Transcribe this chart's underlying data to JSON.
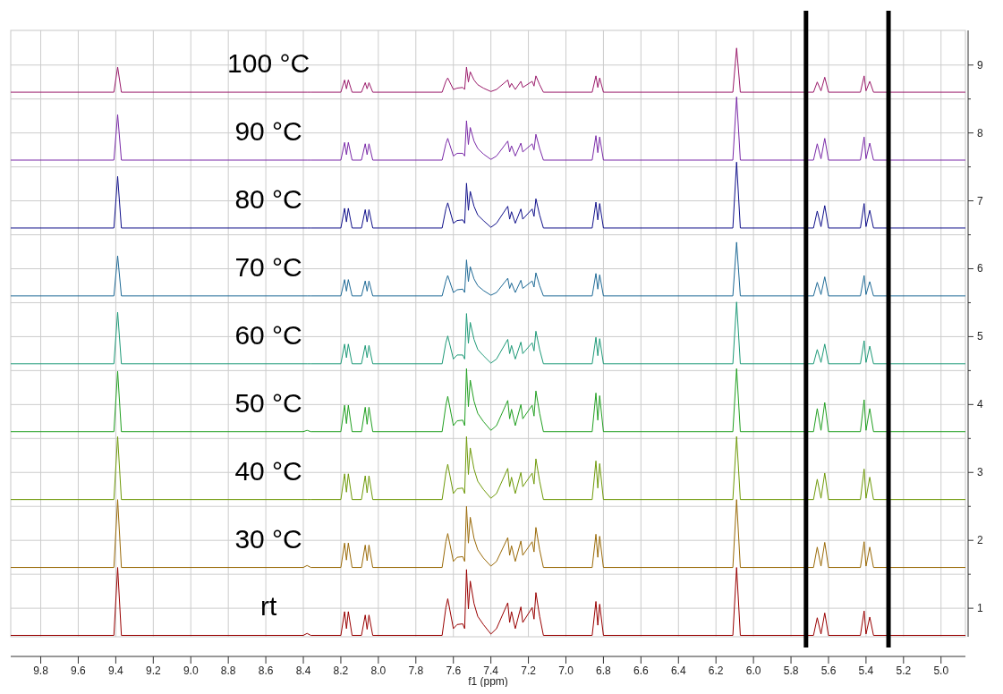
{
  "chart_data": {
    "type": "line",
    "xlabel": "f1 (ppm)",
    "xlim": [
      9.96,
      4.87
    ],
    "ylim": [
      0.58,
      9.51
    ],
    "xticks": [
      9.8,
      9.6,
      9.4,
      9.2,
      {
        "value": 9.0,
        "label": "9.0"
      },
      8.8,
      8.6,
      8.4,
      8.2,
      {
        "value": 8.0,
        "label": "8.0"
      },
      7.8,
      7.6,
      7.4,
      7.2,
      {
        "value": 7.0,
        "label": "7.0"
      },
      6.8,
      6.6,
      6.4,
      6.2,
      {
        "value": 6.0,
        "label": "6.0"
      },
      5.8,
      5.6,
      5.4,
      5.2,
      {
        "value": 5.0,
        "label": "5.0"
      }
    ],
    "yticks": [
      1,
      {
        "value": 1.5,
        "label": null
      },
      2,
      {
        "value": 2.5,
        "label": null
      },
      3,
      {
        "value": 3.5,
        "label": null
      },
      4,
      {
        "value": 4.5,
        "label": null
      },
      5,
      {
        "value": 5.5,
        "label": null
      },
      6,
      {
        "value": 6.5,
        "label": null
      },
      7,
      {
        "value": 7.5,
        "label": null
      },
      8,
      {
        "value": 8.5,
        "label": null
      },
      9
    ],
    "grid": true,
    "ref_lines": [
      {
        "axis": "x",
        "value": 5.72,
        "color": "#000000"
      },
      {
        "axis": "x",
        "value": 5.28,
        "color": "#000000"
      }
    ],
    "x": [
      9.96,
      9.41,
      9.39,
      9.37,
      8.4,
      8.38,
      8.36,
      8.2,
      8.18,
      8.17,
      8.16,
      8.14,
      8.09,
      8.07,
      8.06,
      8.05,
      8.03,
      7.66,
      7.64,
      7.63,
      7.6,
      7.58,
      7.55,
      7.54,
      7.53,
      7.52,
      7.51,
      7.49,
      7.47,
      7.44,
      7.4,
      7.37,
      7.31,
      7.3,
      7.29,
      7.27,
      7.24,
      7.23,
      7.18,
      7.17,
      7.16,
      7.14,
      7.12,
      6.86,
      6.84,
      6.83,
      6.82,
      6.8,
      6.11,
      6.09,
      6.07,
      5.68,
      5.66,
      5.64,
      5.62,
      5.6,
      5.43,
      5.41,
      5.4,
      5.38,
      5.36,
      4.87
    ],
    "series": [
      {
        "name": "rt",
        "color": "#990000",
        "values": [
          0.6,
          0.6,
          1.6,
          0.6,
          0.6,
          0.63,
          0.6,
          0.6,
          0.95,
          0.7,
          0.95,
          0.6,
          0.6,
          0.9,
          0.69,
          0.9,
          0.6,
          0.6,
          1.01,
          1.14,
          0.7,
          0.76,
          0.77,
          0.7,
          1.57,
          0.99,
          1.4,
          1.07,
          0.88,
          0.76,
          0.62,
          0.7,
          1.08,
          0.79,
          0.95,
          0.7,
          1.02,
          0.79,
          1.01,
          0.84,
          1.23,
          0.88,
          0.6,
          0.6,
          1.1,
          0.75,
          1.06,
          0.6,
          0.6,
          1.6,
          0.6,
          0.6,
          0.86,
          0.62,
          0.93,
          0.6,
          0.6,
          0.96,
          0.62,
          0.87,
          0.6,
          0.6
        ]
      },
      {
        "name": "30 °C",
        "color": "#9a6a08",
        "values": [
          1.6,
          1.6,
          2.6,
          1.6,
          1.6,
          1.63,
          1.6,
          1.6,
          1.96,
          1.71,
          1.96,
          1.6,
          1.6,
          1.93,
          1.7,
          1.93,
          1.6,
          1.6,
          1.98,
          2.1,
          1.69,
          1.75,
          1.76,
          1.69,
          2.5,
          1.96,
          2.34,
          2.03,
          1.86,
          1.74,
          1.62,
          1.69,
          2.04,
          1.78,
          1.92,
          1.69,
          1.99,
          1.78,
          1.98,
          1.83,
          2.19,
          1.86,
          1.6,
          1.6,
          2.09,
          1.75,
          2.06,
          1.6,
          1.6,
          2.6,
          1.6,
          1.6,
          1.9,
          1.62,
          1.97,
          1.6,
          1.6,
          1.98,
          1.62,
          1.9,
          1.6,
          1.6
        ]
      },
      {
        "name": "40 °C",
        "color": "#6f9a0a",
        "values": [
          2.6,
          2.6,
          3.53,
          2.6,
          2.6,
          2.6,
          2.6,
          2.6,
          2.98,
          2.71,
          2.98,
          2.6,
          2.6,
          2.95,
          2.7,
          2.95,
          2.6,
          2.6,
          2.99,
          3.12,
          2.69,
          2.76,
          2.77,
          2.69,
          3.53,
          2.97,
          3.36,
          3.05,
          2.87,
          2.75,
          2.62,
          2.69,
          3.06,
          2.79,
          2.93,
          2.69,
          3.0,
          2.79,
          2.99,
          2.83,
          3.2,
          2.87,
          2.6,
          2.6,
          3.17,
          2.77,
          3.13,
          2.6,
          2.6,
          3.53,
          2.6,
          2.6,
          2.9,
          2.62,
          2.99,
          2.6,
          2.6,
          3.05,
          2.62,
          2.93,
          2.6,
          2.6
        ]
      },
      {
        "name": "50 °C",
        "color": "#22a022",
        "values": [
          3.6,
          3.6,
          4.49,
          3.6,
          3.6,
          3.62,
          3.6,
          3.6,
          3.99,
          3.72,
          3.99,
          3.6,
          3.6,
          3.96,
          3.71,
          3.96,
          3.6,
          3.6,
          3.99,
          4.12,
          3.69,
          3.76,
          3.77,
          3.69,
          4.53,
          3.97,
          4.36,
          4.05,
          3.87,
          3.75,
          3.62,
          3.69,
          4.06,
          3.79,
          3.93,
          3.69,
          4.0,
          3.79,
          3.99,
          3.83,
          4.2,
          3.87,
          3.6,
          3.6,
          4.17,
          3.77,
          4.13,
          3.6,
          3.6,
          4.53,
          3.6,
          3.6,
          3.94,
          3.62,
          4.03,
          3.6,
          3.6,
          4.07,
          3.62,
          3.94,
          3.6,
          3.6
        ]
      },
      {
        "name": "60 °C",
        "color": "#1e9a78",
        "values": [
          4.6,
          4.6,
          5.36,
          4.6,
          4.6,
          4.6,
          4.6,
          4.6,
          4.89,
          4.69,
          4.89,
          4.6,
          4.6,
          4.87,
          4.69,
          4.87,
          4.6,
          4.6,
          4.91,
          5.01,
          4.67,
          4.73,
          4.73,
          4.67,
          5.34,
          4.9,
          5.21,
          4.96,
          4.81,
          4.72,
          4.61,
          4.67,
          4.96,
          4.75,
          4.87,
          4.67,
          4.92,
          4.75,
          4.91,
          4.79,
          5.08,
          4.81,
          4.6,
          4.6,
          4.99,
          4.72,
          4.97,
          4.6,
          4.6,
          5.51,
          4.6,
          4.6,
          4.81,
          4.62,
          4.89,
          4.6,
          4.6,
          4.94,
          4.62,
          4.86,
          4.6,
          4.6
        ]
      },
      {
        "name": "70 °C",
        "color": "#1f6a96",
        "values": [
          5.6,
          5.6,
          6.19,
          5.6,
          5.6,
          5.6,
          5.6,
          5.6,
          5.84,
          5.67,
          5.84,
          5.6,
          5.6,
          5.82,
          5.67,
          5.82,
          5.6,
          5.6,
          5.82,
          5.9,
          5.65,
          5.69,
          5.7,
          5.65,
          6.13,
          5.81,
          6.03,
          5.85,
          5.75,
          5.68,
          5.61,
          5.65,
          5.86,
          5.71,
          5.79,
          5.65,
          5.83,
          5.71,
          5.82,
          5.73,
          5.94,
          5.75,
          5.6,
          5.6,
          5.93,
          5.7,
          5.91,
          5.6,
          5.6,
          6.39,
          5.6,
          5.6,
          5.8,
          5.62,
          5.88,
          5.6,
          5.6,
          5.9,
          5.62,
          5.81,
          5.6,
          5.6
        ]
      },
      {
        "name": "80 °C",
        "color": "#10108a",
        "values": [
          6.6,
          6.6,
          7.36,
          6.6,
          6.6,
          6.6,
          6.6,
          6.6,
          6.89,
          6.69,
          6.89,
          6.6,
          6.6,
          6.87,
          6.69,
          6.87,
          6.6,
          6.6,
          6.88,
          6.97,
          6.67,
          6.71,
          6.72,
          6.67,
          7.26,
          6.86,
          7.14,
          6.92,
          6.79,
          6.71,
          6.61,
          6.67,
          6.92,
          6.73,
          6.84,
          6.67,
          6.88,
          6.73,
          6.88,
          6.77,
          7.03,
          6.79,
          6.6,
          6.6,
          6.98,
          6.72,
          6.96,
          6.6,
          6.6,
          7.57,
          6.6,
          6.6,
          6.85,
          6.62,
          6.93,
          6.6,
          6.6,
          6.96,
          6.62,
          6.86,
          6.6,
          6.6
        ]
      },
      {
        "name": "90 °C",
        "color": "#7a2aa8",
        "values": [
          7.6,
          7.6,
          8.27,
          7.6,
          7.6,
          7.6,
          7.6,
          7.6,
          7.86,
          7.68,
          7.86,
          7.6,
          7.6,
          7.84,
          7.68,
          7.84,
          7.6,
          7.6,
          7.84,
          7.92,
          7.66,
          7.7,
          7.7,
          7.66,
          8.18,
          7.83,
          8.08,
          7.88,
          7.77,
          7.69,
          7.61,
          7.66,
          7.88,
          7.72,
          7.81,
          7.66,
          7.85,
          7.72,
          7.84,
          7.75,
          7.98,
          7.77,
          7.6,
          7.6,
          7.96,
          7.71,
          7.94,
          7.6,
          7.6,
          8.53,
          7.6,
          7.6,
          7.84,
          7.62,
          7.92,
          7.6,
          7.6,
          7.94,
          7.62,
          7.85,
          7.6,
          7.6
        ]
      },
      {
        "name": "100 °C",
        "color": "#9a1a6a",
        "values": [
          8.6,
          8.6,
          8.97,
          8.6,
          8.6,
          8.6,
          8.6,
          8.6,
          8.78,
          8.65,
          8.78,
          8.6,
          8.6,
          8.74,
          8.65,
          8.74,
          8.6,
          8.6,
          8.76,
          8.81,
          8.64,
          8.66,
          8.67,
          8.64,
          8.97,
          8.75,
          8.9,
          8.78,
          8.71,
          8.66,
          8.61,
          8.64,
          8.78,
          8.67,
          8.73,
          8.64,
          8.76,
          8.67,
          8.76,
          8.69,
          8.84,
          8.71,
          8.6,
          8.6,
          8.84,
          8.67,
          8.81,
          8.6,
          8.6,
          9.25,
          8.6,
          8.6,
          8.75,
          8.62,
          8.82,
          8.6,
          8.6,
          8.84,
          8.62,
          8.76,
          8.6,
          8.6
        ]
      }
    ]
  }
}
